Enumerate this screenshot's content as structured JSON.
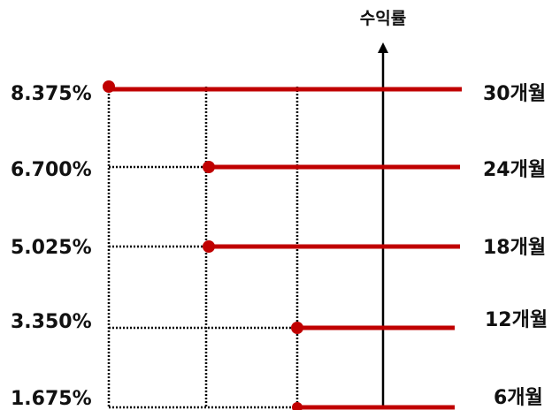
{
  "axis_title": "수익률",
  "colors": {
    "rate_line": "#c00000",
    "axis": "#000000",
    "guide": "#000000",
    "text": "#111111"
  },
  "rows": [
    {
      "rate": "8.375%",
      "term": "30개월"
    },
    {
      "rate": "6.700%",
      "term": "24개월"
    },
    {
      "rate": "5.025%",
      "term": "18개월"
    },
    {
      "rate": "3.350%",
      "term": "12개월"
    },
    {
      "rate": "1.675%",
      "term": "6개월"
    }
  ]
}
